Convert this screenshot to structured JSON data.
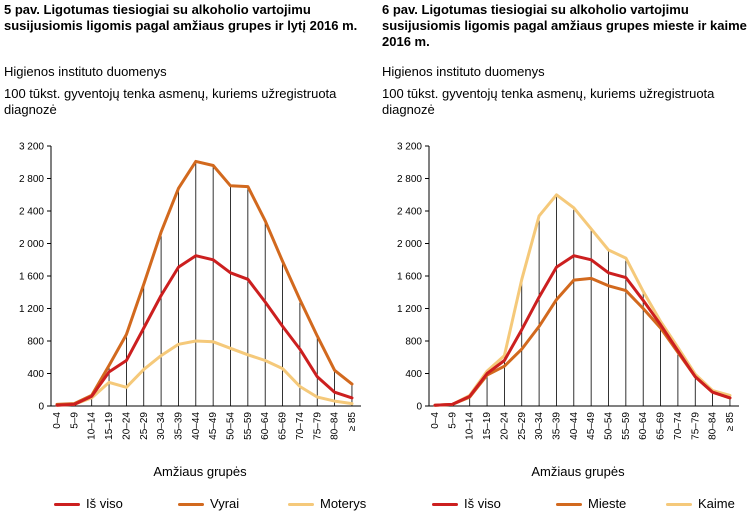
{
  "chart_data": [
    {
      "type": "line",
      "title": "5 pav. Ligotumas tiesiogiai su alkoholio vartojimu susijusiomis ligomis pagal amžiaus grupes ir lytį 2016 m.",
      "source": "Higienos instituto duomenys",
      "subtitle": "100 tūkst. gyventojų tenka asmenų, kuriems užregistruota diagnozė",
      "xlabel": "Amžiaus grupės",
      "ylabel": "",
      "ylim": [
        0,
        3200
      ],
      "yticks": [
        0,
        400,
        800,
        1200,
        1600,
        2000,
        2400,
        2800,
        3200
      ],
      "ytick_labels": [
        "0",
        "400",
        "800",
        "1 200",
        "1 600",
        "2 000",
        "2 400",
        "2 800",
        "3 200"
      ],
      "categories": [
        "0–4",
        "5–9",
        "10–14",
        "15–19",
        "20–24",
        "25–29",
        "30–34",
        "35–39",
        "40–44",
        "45–49",
        "50–54",
        "55–59",
        "60–64",
        "65–69",
        "70–74",
        "75–79",
        "80–84",
        "≥ 85"
      ],
      "grid": "vertical drop lines",
      "legend_position": "bottom",
      "series": [
        {
          "name": "Iš viso",
          "color": "#cc1f1f",
          "values": [
            10,
            20,
            120,
            420,
            560,
            960,
            1360,
            1710,
            1850,
            1800,
            1640,
            1560,
            1280,
            980,
            700,
            360,
            170,
            100
          ]
        },
        {
          "name": "Vyrai",
          "color": "#d2691e",
          "values": [
            20,
            30,
            130,
            500,
            880,
            1500,
            2140,
            2680,
            3010,
            2960,
            2710,
            2700,
            2280,
            1780,
            1310,
            860,
            440,
            270
          ]
        },
        {
          "name": "Moterys",
          "color": "#f5c97a",
          "values": [
            10,
            20,
            100,
            290,
            230,
            450,
            620,
            760,
            800,
            790,
            710,
            630,
            560,
            460,
            240,
            110,
            60,
            30
          ]
        }
      ]
    },
    {
      "type": "line",
      "title": "6 pav. Ligotumas tiesiogiai su alkoholio vartojimu susijusiomis ligomis pagal amžiaus grupes mieste ir kaime 2016 m.",
      "source": "Higienos instituto duomenys",
      "subtitle": "100 tūkst. gyventojų tenka asmenų, kuriems užregistruota diagnozė",
      "xlabel": "Amžiaus grupės",
      "ylabel": "",
      "ylim": [
        0,
        3200
      ],
      "yticks": [
        0,
        400,
        800,
        1200,
        1600,
        2000,
        2400,
        2800,
        3200
      ],
      "ytick_labels": [
        "0",
        "400",
        "800",
        "1 200",
        "1 600",
        "2 000",
        "2 400",
        "2 800",
        "3 200"
      ],
      "categories": [
        "0–4",
        "5–9",
        "10–14",
        "15–19",
        "20–24",
        "25–29",
        "30–34",
        "35–39",
        "40–44",
        "45–49",
        "50–54",
        "55–59",
        "60–64",
        "65–69",
        "70–74",
        "75–79",
        "80–84",
        "≥ 85"
      ],
      "grid": "vertical drop lines",
      "legend_position": "bottom",
      "series": [
        {
          "name": "Iš viso",
          "color": "#cc1f1f",
          "values": [
            10,
            20,
            120,
            400,
            560,
            940,
            1340,
            1710,
            1850,
            1800,
            1640,
            1580,
            1300,
            1000,
            680,
            360,
            170,
            100
          ]
        },
        {
          "name": "Mieste",
          "color": "#d2691e",
          "values": [
            10,
            20,
            110,
            380,
            490,
            700,
            980,
            1310,
            1550,
            1570,
            1480,
            1420,
            1200,
            960,
            660,
            360,
            170,
            100
          ]
        },
        {
          "name": "Kaime",
          "color": "#f5c97a",
          "values": [
            10,
            20,
            130,
            430,
            620,
            1560,
            2340,
            2600,
            2440,
            2180,
            1920,
            1820,
            1410,
            1040,
            720,
            390,
            190,
            130
          ]
        }
      ]
    }
  ]
}
